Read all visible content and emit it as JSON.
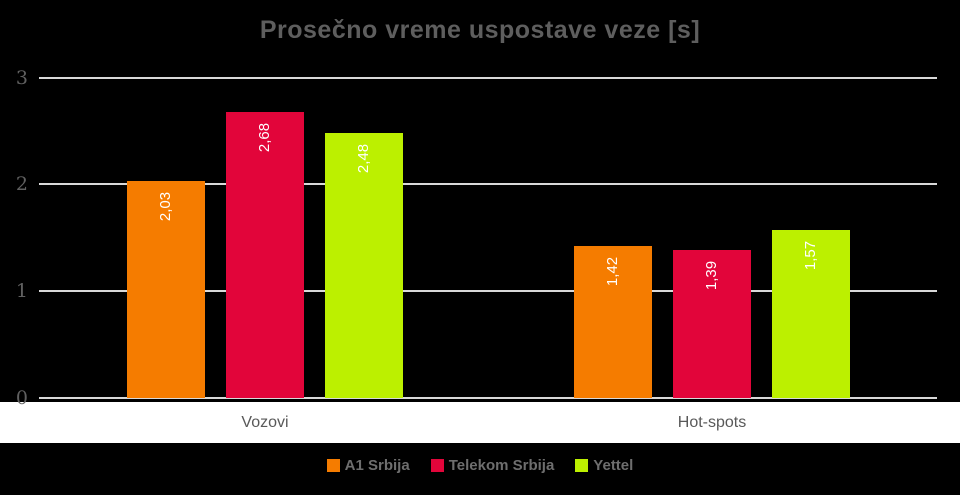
{
  "chart_data": {
    "type": "bar",
    "title": "Prosečno vreme uspostave veze [s]",
    "categories": [
      "Vozovi",
      "Hot-spots"
    ],
    "series": [
      {
        "name": "A1 Srbija",
        "color": "#F57C00",
        "values": [
          2.03,
          1.42
        ],
        "labels": [
          "2,03",
          "1,42"
        ]
      },
      {
        "name": "Telekom Srbija",
        "color": "#E2053A",
        "values": [
          2.68,
          1.39
        ],
        "labels": [
          "2,68",
          "1,39"
        ]
      },
      {
        "name": "Yettel",
        "color": "#BCF000",
        "values": [
          2.48,
          1.57
        ],
        "labels": [
          "2,48",
          "1,57"
        ]
      }
    ],
    "yticks": [
      0,
      1,
      2,
      3
    ],
    "ylim": [
      0,
      3
    ],
    "grid": true,
    "legend_position": "bottom",
    "value_label_format": "decimal-comma",
    "value_label_rotation": -90
  },
  "style": {
    "background": "#000000",
    "plot_background": "#000000",
    "gridline_color": "#D9D9D9",
    "title_color": "#5E5E5E",
    "tick_label_color": "#606060",
    "category_label_color": "#595959",
    "category_strip_background": "#FFFFFF",
    "legend_text_color": "#6E6E6E",
    "bar_label_color": "#FFFFFF"
  }
}
